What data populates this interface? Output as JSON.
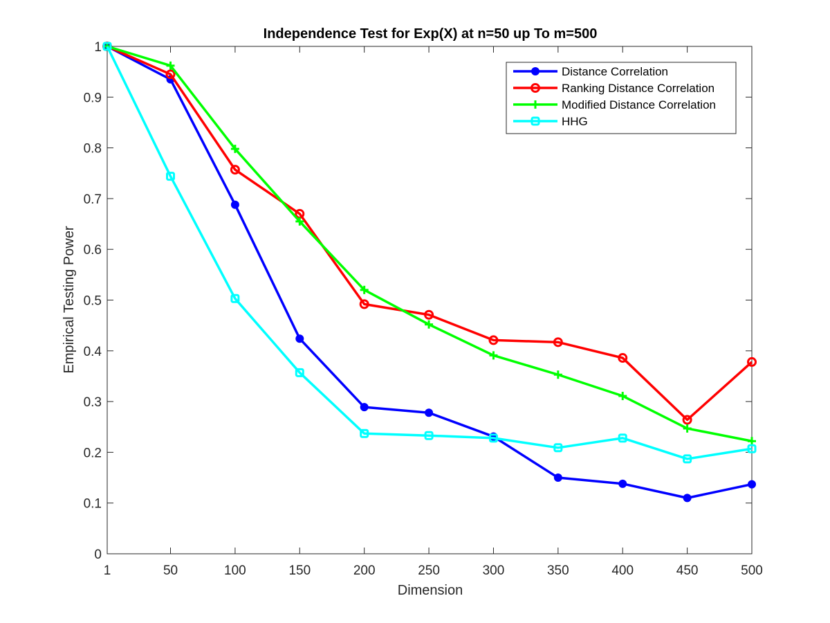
{
  "chart_data": {
    "type": "line",
    "title": "Independence Test for Exp(X) at n=50 up To m=500",
    "xlabel": "Dimension",
    "ylabel": "Empirical Testing Power",
    "x": [
      1,
      50,
      100,
      150,
      200,
      250,
      300,
      350,
      400,
      450,
      500
    ],
    "xlim": [
      1,
      500
    ],
    "ylim": [
      0,
      1
    ],
    "xticks": [
      "1",
      "50",
      "100",
      "150",
      "200",
      "250",
      "300",
      "350",
      "400",
      "450",
      "500"
    ],
    "yticks": [
      "0",
      "0.1",
      "0.2",
      "0.3",
      "0.4",
      "0.5",
      "0.6",
      "0.7",
      "0.8",
      "0.9",
      "1"
    ],
    "grid": false,
    "legend_position": "top-right",
    "series": [
      {
        "name": "Distance Correlation",
        "color": "#0000FF",
        "marker": "filled-circle",
        "values": [
          1.0,
          0.935,
          0.688,
          0.424,
          0.289,
          0.278,
          0.231,
          0.15,
          0.138,
          0.11,
          0.137
        ]
      },
      {
        "name": "Ranking Distance Correlation",
        "color": "#FF0000",
        "marker": "circle-open",
        "values": [
          1.0,
          0.945,
          0.757,
          0.67,
          0.492,
          0.471,
          0.421,
          0.417,
          0.386,
          0.264,
          0.378
        ]
      },
      {
        "name": "Modified Distance Correlation",
        "color": "#00FF00",
        "marker": "plus",
        "values": [
          1.0,
          0.962,
          0.798,
          0.655,
          0.52,
          0.452,
          0.391,
          0.353,
          0.311,
          0.247,
          0.222
        ]
      },
      {
        "name": "HHG",
        "color": "#00FFFF",
        "marker": "square-open",
        "values": [
          1.0,
          0.744,
          0.503,
          0.357,
          0.237,
          0.233,
          0.228,
          0.209,
          0.228,
          0.187,
          0.207
        ]
      }
    ]
  }
}
